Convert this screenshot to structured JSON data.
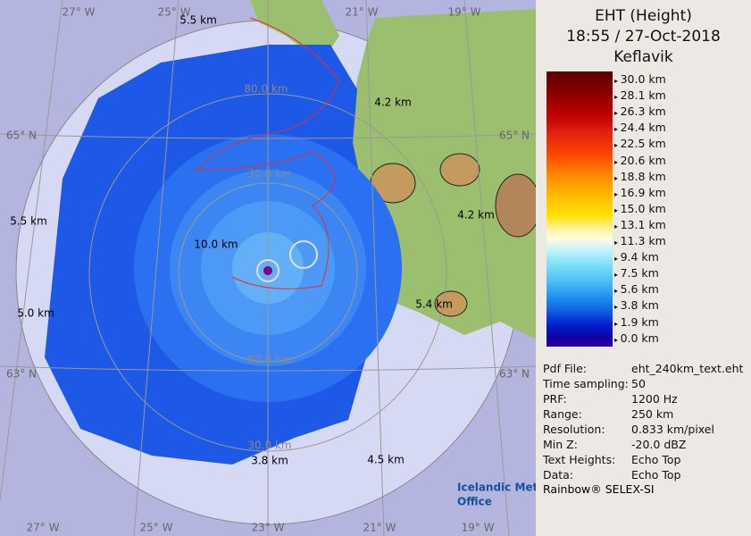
{
  "map": {
    "lon_labels_top": [
      "27° W",
      "25° W",
      "21° W",
      "19° W"
    ],
    "lon_labels_bottom": [
      "27° W",
      "25° W",
      "23° W",
      "21° W",
      "19° W"
    ],
    "lat_labels_left": [
      "65° N",
      "63° N"
    ],
    "lat_labels_right": [
      "65° N",
      "63° N"
    ],
    "range_labels": [
      "80.0 km",
      "30.0 km",
      "80.0 km",
      "30.0 km"
    ],
    "height_labels": [
      "5.5 km",
      "4.2 km",
      "5.5 km",
      "10.0 km",
      "4.2 km",
      "5.0 km",
      "5.4 km",
      "3.8 km",
      "4.5 km"
    ],
    "logo": [
      "Icelandic Met",
      "Office"
    ]
  },
  "panel": {
    "title": [
      "EHT (Height)",
      "18:55 / 27-Oct-2018",
      "Keflavik"
    ],
    "scale_labels": [
      "30.0 km",
      "28.1 km",
      "26.3 km",
      "24.4 km",
      "22.5 km",
      "20.6 km",
      "18.8 km",
      "16.9 km",
      "15.0 km",
      "13.1 km",
      "11.3 km",
      "9.4 km",
      "7.5 km",
      "5.6 km",
      "3.8 km",
      "1.9 km",
      "0.0 km"
    ],
    "info": [
      [
        "Pdf File:",
        "eht_240km_text.eht"
      ],
      [
        "Time sampling:",
        "50"
      ],
      [
        "PRF:",
        "1200 Hz"
      ],
      [
        "Range:",
        "250 km"
      ],
      [
        "Resolution:",
        "0.833 km/pixel"
      ],
      [
        "Min Z:",
        "-20.0 dBZ"
      ],
      [
        "Text Heights:",
        "Echo Top"
      ],
      [
        "Data:",
        "Echo Top"
      ]
    ],
    "footer": "Rainbow® SELEX-SI"
  }
}
